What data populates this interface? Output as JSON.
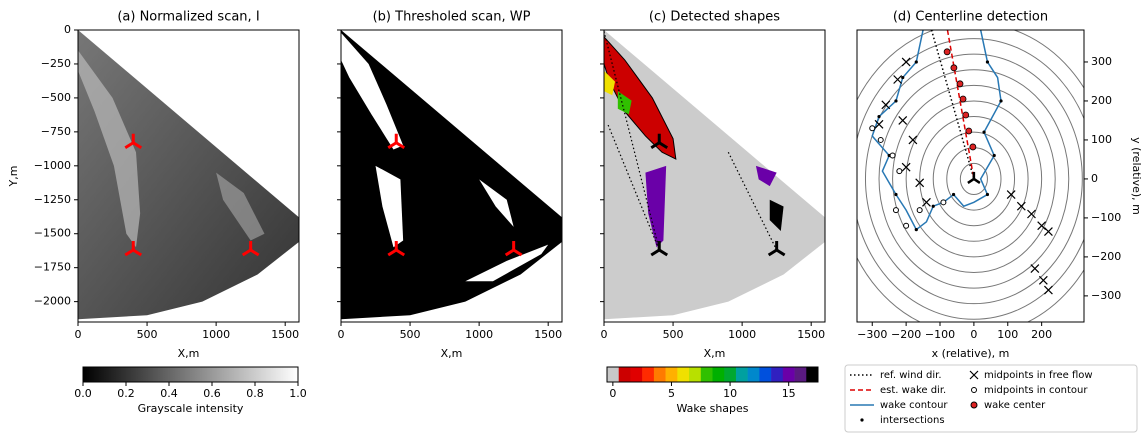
{
  "chart_data": [
    {
      "type": "image",
      "title": "(a) Normalized scan, I",
      "xlabel": "X,m",
      "ylabel": "Y,m",
      "xlim": [
        0,
        1600
      ],
      "ylim": [
        -2150,
        0
      ],
      "xticks": [
        0,
        500,
        1000,
        1500
      ],
      "yticks": [
        0,
        {
          "value": -250,
          "label": "−250"
        },
        {
          "value": -500,
          "label": "−500"
        },
        {
          "value": -750,
          "label": "−750"
        },
        {
          "value": -1000,
          "label": "−1000"
        },
        {
          "value": -1250,
          "label": "−1250"
        },
        {
          "value": -1500,
          "label": "−1500"
        },
        {
          "value": -1750,
          "label": "−1750"
        },
        {
          "value": -2000,
          "label": "−2000"
        }
      ],
      "marker_color": "#ff0000",
      "markers": {
        "x": [
          400,
          400,
          1250
        ],
        "y": [
          -830,
          -1620,
          -1620
        ]
      },
      "colorbar": {
        "label": "Grayscale intensity",
        "lim": [
          0,
          1
        ],
        "colors": [
          "#000000",
          "#ffffff"
        ],
        "ticks": [
          {
            "value": 0,
            "label": "0.0"
          },
          {
            "value": 0.2,
            "label": "0.2"
          },
          {
            "value": 0.4,
            "label": "0.4"
          },
          {
            "value": 0.6,
            "label": "0.6"
          },
          {
            "value": 0.8,
            "label": "0.8"
          },
          {
            "value": 1,
            "label": "1.0"
          }
        ]
      }
    },
    {
      "type": "image",
      "title": "(b) Thresholed scan, WP",
      "xlabel": "X,m",
      "xlim": [
        0,
        1600
      ],
      "ylim": [
        -2150,
        0
      ],
      "xticks": [
        0,
        500,
        1000,
        1500
      ],
      "marker_color": "#ff0000",
      "markers": {
        "x": [
          400,
          400,
          1250
        ],
        "y": [
          -830,
          -1620,
          -1620
        ]
      }
    },
    {
      "type": "image",
      "title": "(c) Detected shapes",
      "xlabel": "X,m",
      "xlim": [
        0,
        1600
      ],
      "ylim": [
        -2150,
        0
      ],
      "xticks": [
        0,
        500,
        1000,
        1500
      ],
      "marker_color": "#000000",
      "markers": {
        "x": [
          400,
          400,
          1250
        ],
        "y": [
          -830,
          -1620,
          -1620
        ]
      },
      "colorbar": {
        "label": "Wake shapes",
        "lim": [
          -0.5,
          17.5
        ],
        "ticks": [
          0,
          5,
          10,
          15
        ],
        "colors": [
          "#c8c8c8",
          "#cc0000",
          "#e00000",
          "#ff2a00",
          "#ff7a00",
          "#ffb000",
          "#f0e000",
          "#b8e000",
          "#30c000",
          "#00b000",
          "#00a830",
          "#00a0a0",
          "#0088cc",
          "#0050dd",
          "#3020c0",
          "#6a00a8",
          "#5a1a80",
          "#000000"
        ]
      }
    },
    {
      "type": "scatter",
      "title": "(d) Centerline detection",
      "xlabel": "x (relative), m",
      "ylabel": "y (relative), m",
      "xlim": [
        -345,
        325
      ],
      "ylim": [
        -367,
        382
      ],
      "xticks": [
        {
          "value": -300,
          "label": "−300"
        },
        {
          "value": -200,
          "label": "−200"
        },
        {
          "value": -100,
          "label": "−100"
        },
        0,
        100,
        200
      ],
      "yticks": [
        {
          "value": -300,
          "label": "−300"
        },
        {
          "value": -200,
          "label": "−200"
        },
        {
          "value": -100,
          "label": "−100"
        },
        0,
        100,
        200,
        300
      ],
      "ring_radii": [
        40,
        80,
        120,
        160,
        200,
        240,
        280,
        320,
        360,
        400
      ],
      "series": [
        {
          "name": "ref. wind dir.",
          "style": "dotted",
          "color": "#000000",
          "x": [
            -125,
            0
          ],
          "y": [
            382,
            0
          ]
        },
        {
          "name": "est. wake dir.",
          "style": "dashed",
          "color": "#dd0000",
          "x": [
            -78,
            0
          ],
          "y": [
            382,
            0
          ]
        },
        {
          "name": "wake contour",
          "style": "line",
          "color": "#2878b4",
          "x": [
            -150,
            -170,
            -210,
            -230,
            -280,
            -300,
            -250,
            -270,
            -230,
            -200,
            -170,
            -140,
            -120,
            -90,
            -60,
            -30,
            0,
            40,
            20,
            60,
            30,
            80,
            70,
            40,
            20
          ],
          "y": [
            382,
            300,
            260,
            200,
            160,
            110,
            60,
            20,
            -40,
            -80,
            -130,
            -110,
            -70,
            -60,
            -40,
            -70,
            -60,
            -40,
            0,
            60,
            120,
            200,
            260,
            300,
            382
          ]
        },
        {
          "name": "intersections",
          "style": "dot",
          "color": "#000000",
          "x": [
            -170,
            -210,
            -230,
            -280,
            -250,
            -230,
            -170,
            -120,
            -60,
            40,
            60,
            30,
            80,
            40
          ],
          "y": [
            300,
            260,
            200,
            160,
            60,
            -40,
            -130,
            -70,
            -40,
            -40,
            60,
            120,
            200,
            300
          ]
        },
        {
          "name": "midpoints in free flow",
          "style": "x",
          "color": "#000000",
          "x": [
            -200,
            -225,
            -260,
            -280,
            -210,
            -180,
            -200,
            -160,
            -140,
            110,
            140,
            170,
            200,
            220,
            180,
            205,
            220
          ],
          "y": [
            300,
            255,
            190,
            140,
            150,
            100,
            30,
            -10,
            -60,
            -40,
            -70,
            -90,
            -120,
            -135,
            -230,
            -260,
            -285
          ]
        },
        {
          "name": "midpoints in contour",
          "style": "o",
          "color": "#000000",
          "x": [
            -300,
            -275,
            -240,
            -220,
            -230,
            -200,
            -160,
            -90
          ],
          "y": [
            130,
            100,
            60,
            20,
            -80,
            -120,
            -80,
            -60
          ]
        },
        {
          "name": "wake center",
          "style": "center",
          "color": "#dd2222",
          "x": [
            -79,
            -59,
            -41,
            -32,
            -24,
            -15,
            -3
          ],
          "y": [
            326,
            285,
            244,
            205,
            164,
            123,
            82
          ]
        }
      ]
    }
  ]
}
